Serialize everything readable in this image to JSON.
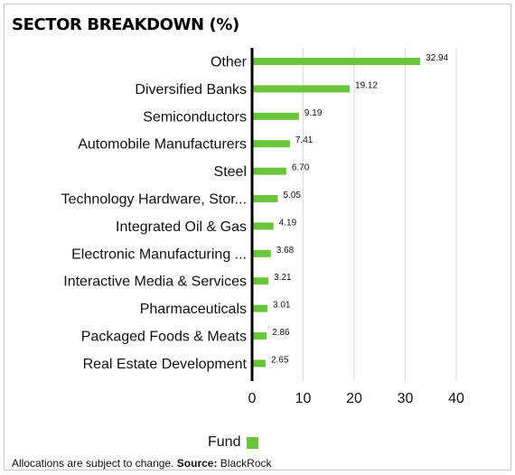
{
  "title": "SECTOR BREAKDOWN (%)",
  "chart_data": {
    "type": "bar",
    "orientation": "horizontal",
    "categories": [
      "Other",
      "Diversified Banks",
      "Semiconductors",
      "Automobile Manufacturers",
      "Steel",
      "Technology Hardware, Stor...",
      "Integrated Oil & Gas",
      "Electronic Manufacturing ...",
      "Interactive Media & Services",
      "Pharmaceuticals",
      "Packaged Foods & Meats",
      "Real Estate Development"
    ],
    "series": [
      {
        "name": "Fund",
        "color": "#6cc33c",
        "values": [
          32.94,
          19.12,
          9.19,
          7.41,
          6.7,
          5.05,
          4.19,
          3.68,
          3.21,
          3.01,
          2.86,
          2.65
        ],
        "value_labels": [
          "32.94",
          "19.12",
          "9.19",
          "7.41",
          "6.70",
          "5.05",
          "4.19",
          "3.68",
          "3.21",
          "3.01",
          "2.86",
          "2.65"
        ]
      }
    ],
    "xlim": [
      0,
      40
    ],
    "xticks": [
      0,
      10,
      20,
      30,
      40
    ],
    "grid": "vertical",
    "legend": "bottom-center"
  },
  "legend": {
    "label": "Fund",
    "color": "#6cc33c"
  },
  "footnote": {
    "text": "Allocations are subject to change. ",
    "source_label": "Source:",
    "source_value": " BlackRock"
  }
}
